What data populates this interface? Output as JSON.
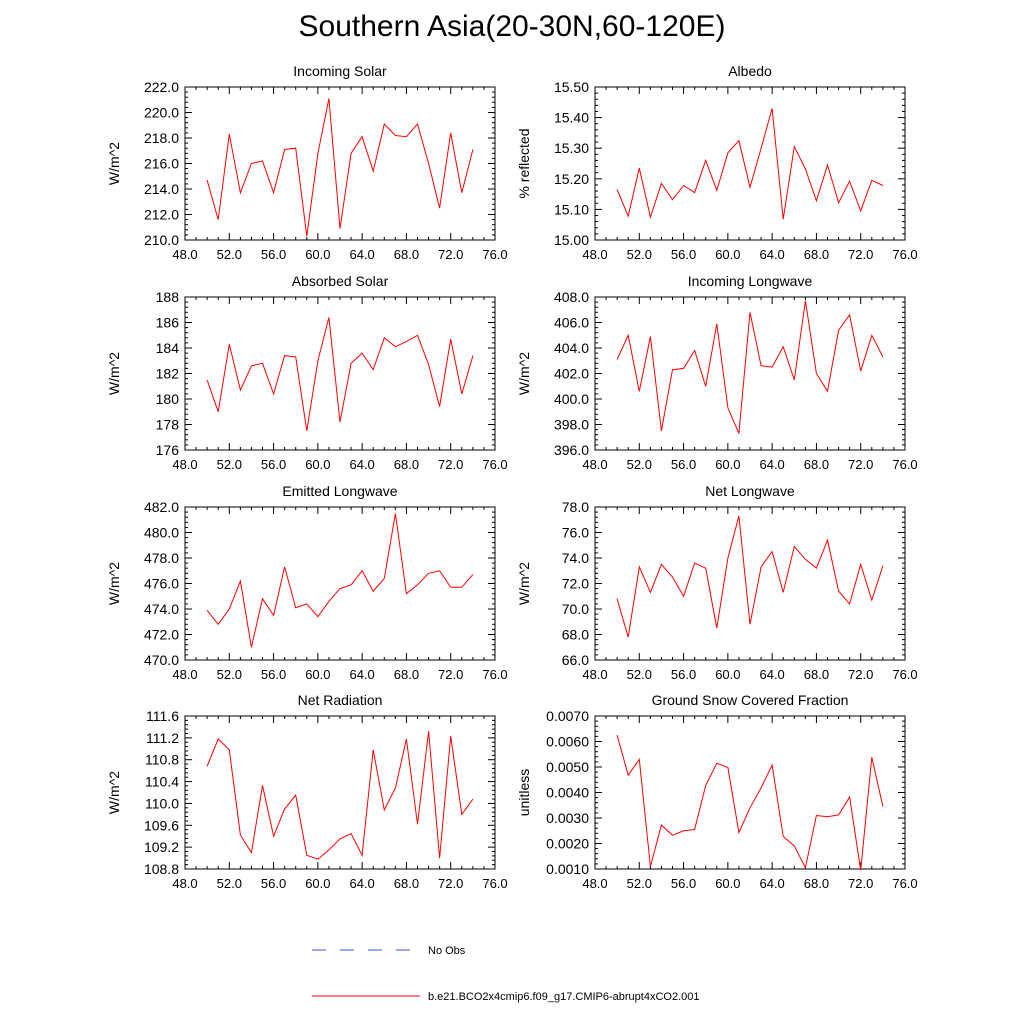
{
  "figure_title": "Southern Asia(20-30N,60-120E)",
  "colors": {
    "model": "#ff0000",
    "obs": "#3355cc",
    "axis": "#000000"
  },
  "legend": {
    "obs_label": "No Obs",
    "model_label": "b.e21.BCO2x4cmip6.f09_g17.CMIP6-abrupt4xCO2.001"
  },
  "chart_data": [
    {
      "type": "line",
      "title": "Incoming Solar",
      "ylabel": "W/m^2",
      "xlim": [
        48,
        76
      ],
      "ylim": [
        210,
        222
      ],
      "yticks": [
        "210.0",
        "212.0",
        "214.0",
        "216.0",
        "218.0",
        "220.0",
        "222.0"
      ],
      "xticks": [
        "48.0",
        "52.0",
        "56.0",
        "60.0",
        "64.0",
        "68.0",
        "72.0",
        "76.0"
      ],
      "x": [
        50,
        51,
        52,
        53,
        54,
        55,
        56,
        57,
        58,
        59,
        60,
        61,
        62,
        63,
        64,
        65,
        66,
        67,
        68,
        69,
        70,
        71,
        72,
        73,
        74
      ],
      "series": [
        {
          "name": "b.e21.BCO2x4cmip6.f09_g17.CMIP6-abrupt4xCO2.001",
          "values": [
            214.7,
            211.6,
            218.3,
            213.7,
            216.0,
            216.2,
            213.7,
            217.1,
            217.2,
            210.3,
            216.8,
            221.1,
            210.9,
            216.8,
            218.1,
            215.4,
            219.1,
            218.2,
            218.1,
            219.1,
            216.0,
            212.5,
            218.4,
            213.7,
            217.1
          ]
        }
      ]
    },
    {
      "type": "line",
      "title": "Albedo",
      "ylabel": "% reflected",
      "xlim": [
        48,
        76
      ],
      "ylim": [
        15.0,
        15.5
      ],
      "yticks": [
        "15.00",
        "15.10",
        "15.20",
        "15.30",
        "15.40",
        "15.50"
      ],
      "xticks": [
        "48.0",
        "52.0",
        "56.0",
        "60.0",
        "64.0",
        "68.0",
        "72.0",
        "76.0"
      ],
      "x": [
        50,
        51,
        52,
        53,
        54,
        55,
        56,
        57,
        58,
        59,
        60,
        61,
        62,
        63,
        64,
        65,
        66,
        67,
        68,
        69,
        70,
        71,
        72,
        73,
        74
      ],
      "series": [
        {
          "name": "b.e21.BCO2x4cmip6.f09_g17.CMIP6-abrupt4xCO2.001",
          "values": [
            15.165,
            15.078,
            15.235,
            15.075,
            15.185,
            15.132,
            15.178,
            15.155,
            15.26,
            15.162,
            15.285,
            15.325,
            15.172,
            15.3,
            15.43,
            15.068,
            15.305,
            15.232,
            15.128,
            15.245,
            15.122,
            15.192,
            15.095,
            15.195,
            15.178
          ]
        }
      ]
    },
    {
      "type": "line",
      "title": "Absorbed Solar",
      "ylabel": "W/m^2",
      "xlim": [
        48,
        76
      ],
      "ylim": [
        176,
        188
      ],
      "yticks": [
        "176",
        "178",
        "180",
        "182",
        "184",
        "186",
        "188"
      ],
      "xticks": [
        "48.0",
        "52.0",
        "56.0",
        "60.0",
        "64.0",
        "68.0",
        "72.0",
        "76.0"
      ],
      "x": [
        50,
        51,
        52,
        53,
        54,
        55,
        56,
        57,
        58,
        59,
        60,
        61,
        62,
        63,
        64,
        65,
        66,
        67,
        68,
        69,
        70,
        71,
        72,
        73,
        74
      ],
      "series": [
        {
          "name": "b.e21.BCO2x4cmip6.f09_g17.CMIP6-abrupt4xCO2.001",
          "values": [
            181.5,
            179.0,
            184.3,
            180.7,
            182.6,
            182.8,
            180.4,
            183.4,
            183.3,
            177.5,
            183.0,
            186.4,
            178.2,
            182.8,
            183.6,
            182.3,
            184.8,
            184.1,
            184.5,
            185.0,
            182.7,
            179.4,
            184.7,
            180.4,
            183.4
          ]
        }
      ]
    },
    {
      "type": "line",
      "title": "Incoming Longwave",
      "ylabel": "W/m^2",
      "xlim": [
        48,
        76
      ],
      "ylim": [
        396,
        408
      ],
      "yticks": [
        "396.0",
        "398.0",
        "400.0",
        "402.0",
        "404.0",
        "406.0",
        "408.0"
      ],
      "xticks": [
        "48.0",
        "52.0",
        "56.0",
        "60.0",
        "64.0",
        "68.0",
        "72.0",
        "76.0"
      ],
      "x": [
        50,
        51,
        52,
        53,
        54,
        55,
        56,
        57,
        58,
        59,
        60,
        61,
        62,
        63,
        64,
        65,
        66,
        67,
        68,
        69,
        70,
        71,
        72,
        73,
        74
      ],
      "series": [
        {
          "name": "b.e21.BCO2x4cmip6.f09_g17.CMIP6-abrupt4xCO2.001",
          "values": [
            403.1,
            405.0,
            400.6,
            404.9,
            397.5,
            402.3,
            402.4,
            403.8,
            401.0,
            405.9,
            399.3,
            397.3,
            406.8,
            402.6,
            402.5,
            404.1,
            401.5,
            407.7,
            402.0,
            400.6,
            405.4,
            406.6,
            402.2,
            405.0,
            403.3
          ]
        }
      ]
    },
    {
      "type": "line",
      "title": "Emitted Longwave",
      "ylabel": "W/m^2",
      "xlim": [
        48,
        76
      ],
      "ylim": [
        470,
        482
      ],
      "yticks": [
        "470.0",
        "472.0",
        "474.0",
        "476.0",
        "478.0",
        "480.0",
        "482.0"
      ],
      "xticks": [
        "48.0",
        "52.0",
        "56.0",
        "60.0",
        "64.0",
        "68.0",
        "72.0",
        "76.0"
      ],
      "x": [
        50,
        51,
        52,
        53,
        54,
        55,
        56,
        57,
        58,
        59,
        60,
        61,
        62,
        63,
        64,
        65,
        66,
        67,
        68,
        69,
        70,
        71,
        72,
        73,
        74
      ],
      "series": [
        {
          "name": "b.e21.BCO2x4cmip6.f09_g17.CMIP6-abrupt4xCO2.001",
          "values": [
            473.9,
            472.8,
            474.0,
            476.2,
            471.0,
            474.8,
            473.5,
            477.3,
            474.1,
            474.4,
            473.4,
            474.6,
            475.6,
            475.9,
            477.0,
            475.4,
            476.4,
            481.5,
            475.2,
            475.9,
            476.8,
            477.0,
            475.7,
            475.7,
            476.7
          ]
        }
      ]
    },
    {
      "type": "line",
      "title": "Net Longwave",
      "ylabel": "W/m^2",
      "xlim": [
        48,
        76
      ],
      "ylim": [
        66,
        78
      ],
      "yticks": [
        "66.0",
        "68.0",
        "70.0",
        "72.0",
        "74.0",
        "76.0",
        "78.0"
      ],
      "xticks": [
        "48.0",
        "52.0",
        "56.0",
        "60.0",
        "64.0",
        "68.0",
        "72.0",
        "76.0"
      ],
      "x": [
        50,
        51,
        52,
        53,
        54,
        55,
        56,
        57,
        58,
        59,
        60,
        61,
        62,
        63,
        64,
        65,
        66,
        67,
        68,
        69,
        70,
        71,
        72,
        73,
        74
      ],
      "series": [
        {
          "name": "b.e21.BCO2x4cmip6.f09_g17.CMIP6-abrupt4xCO2.001",
          "values": [
            70.8,
            67.8,
            73.3,
            71.3,
            73.5,
            72.5,
            71.0,
            73.6,
            73.2,
            68.5,
            74.0,
            77.3,
            68.8,
            73.3,
            74.5,
            71.3,
            74.9,
            73.9,
            73.2,
            75.4,
            71.4,
            70.4,
            73.5,
            70.7,
            73.4
          ]
        }
      ]
    },
    {
      "type": "line",
      "title": "Net Radiation",
      "ylabel": "W/m^2",
      "xlim": [
        48,
        76
      ],
      "ylim": [
        108.8,
        111.6
      ],
      "yticks": [
        "108.8",
        "109.2",
        "109.6",
        "110.0",
        "110.4",
        "110.8",
        "111.2",
        "111.6"
      ],
      "xticks": [
        "48.0",
        "52.0",
        "56.0",
        "60.0",
        "64.0",
        "68.0",
        "72.0",
        "76.0"
      ],
      "x": [
        50,
        51,
        52,
        53,
        54,
        55,
        56,
        57,
        58,
        59,
        60,
        61,
        62,
        63,
        64,
        65,
        66,
        67,
        68,
        69,
        70,
        71,
        72,
        73,
        74
      ],
      "series": [
        {
          "name": "b.e21.BCO2x4cmip6.f09_g17.CMIP6-abrupt4xCO2.001",
          "values": [
            110.68,
            111.18,
            110.98,
            109.42,
            109.1,
            110.33,
            109.4,
            109.9,
            110.15,
            109.05,
            108.98,
            109.15,
            109.35,
            109.45,
            109.05,
            110.98,
            109.88,
            110.28,
            111.18,
            109.62,
            111.32,
            109.0,
            111.23,
            109.8,
            110.08
          ]
        }
      ]
    },
    {
      "type": "line",
      "title": "Ground Snow Covered Fraction",
      "ylabel": "unitless",
      "xlim": [
        48,
        76
      ],
      "ylim": [
        0.001,
        0.007
      ],
      "yticks": [
        "0.0010",
        "0.0020",
        "0.0030",
        "0.0040",
        "0.0050",
        "0.0060",
        "0.0070"
      ],
      "xticks": [
        "48.0",
        "52.0",
        "56.0",
        "60.0",
        "64.0",
        "68.0",
        "72.0",
        "76.0"
      ],
      "x": [
        50,
        51,
        52,
        53,
        54,
        55,
        56,
        57,
        58,
        59,
        60,
        61,
        62,
        63,
        64,
        65,
        66,
        67,
        68,
        69,
        70,
        71,
        72,
        73,
        74
      ],
      "series": [
        {
          "name": "b.e21.BCO2x4cmip6.f09_g17.CMIP6-abrupt4xCO2.001",
          "values": [
            0.00625,
            0.00468,
            0.0053,
            0.0011,
            0.00272,
            0.00232,
            0.0025,
            0.00255,
            0.00428,
            0.00515,
            0.00498,
            0.00243,
            0.0034,
            0.00418,
            0.00508,
            0.00228,
            0.0019,
            0.00105,
            0.0031,
            0.00305,
            0.00312,
            0.00382,
            0.00095,
            0.00538,
            0.00345
          ]
        }
      ]
    }
  ]
}
